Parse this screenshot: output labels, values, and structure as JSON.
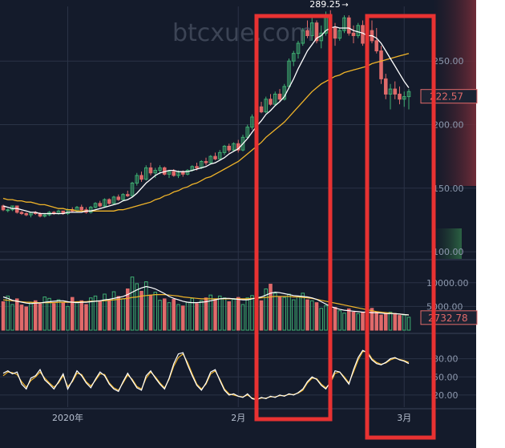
{
  "watermark": "btcxue.com",
  "colors": {
    "background": "#141b2b",
    "up": "#3fae72",
    "down": "#e06a6a",
    "ma_fast": "#ffffff",
    "ma_slow": "#f0b429",
    "highlight": "#e83232",
    "grid": "#2a3346"
  },
  "chart_data": [
    {
      "type": "candlestick",
      "panel": "price",
      "x_axis_labels": [
        {
          "label": "2020年",
          "index": 14
        },
        {
          "label": "2月",
          "index": 51
        },
        {
          "label": "3月",
          "index": 87
        }
      ],
      "y_ticks": [
        "100.00",
        "150.00",
        "200.00",
        "250.00"
      ],
      "ylim": [
        95,
        293
      ],
      "high_annotation": "289.25",
      "high_index": 71,
      "current_price_label": "222.57",
      "ohlc": [
        [
          136,
          137,
          132,
          133
        ],
        [
          133,
          134,
          131,
          133
        ],
        [
          133,
          136,
          132,
          136
        ],
        [
          136,
          136,
          130,
          131
        ],
        [
          131,
          132,
          129,
          130
        ],
        [
          130,
          131,
          128,
          129
        ],
        [
          129,
          131,
          127,
          131
        ],
        [
          131,
          132,
          129,
          130
        ],
        [
          130,
          131,
          127,
          128
        ],
        [
          128,
          130,
          127,
          129
        ],
        [
          129,
          132,
          128,
          131
        ],
        [
          131,
          132,
          129,
          130
        ],
        [
          130,
          133,
          129,
          132
        ],
        [
          132,
          132,
          129,
          130
        ],
        [
          130,
          134,
          129,
          133
        ],
        [
          133,
          135,
          131,
          132
        ],
        [
          132,
          136,
          131,
          135
        ],
        [
          135,
          137,
          132,
          133
        ],
        [
          133,
          135,
          130,
          131
        ],
        [
          131,
          136,
          130,
          135
        ],
        [
          135,
          139,
          134,
          138
        ],
        [
          138,
          140,
          135,
          136
        ],
        [
          136,
          142,
          135,
          141
        ],
        [
          141,
          142,
          137,
          138
        ],
        [
          138,
          144,
          137,
          143
        ],
        [
          143,
          145,
          140,
          141
        ],
        [
          141,
          146,
          140,
          145
        ],
        [
          145,
          148,
          143,
          144
        ],
        [
          144,
          155,
          143,
          154
        ],
        [
          154,
          162,
          152,
          160
        ],
        [
          160,
          163,
          155,
          157
        ],
        [
          157,
          168,
          156,
          166
        ],
        [
          166,
          170,
          160,
          162
        ],
        [
          162,
          166,
          158,
          164
        ],
        [
          164,
          168,
          161,
          166
        ],
        [
          166,
          167,
          160,
          161
        ],
        [
          161,
          164,
          158,
          163
        ],
        [
          163,
          165,
          159,
          160
        ],
        [
          160,
          164,
          158,
          163
        ],
        [
          163,
          164,
          159,
          161
        ],
        [
          161,
          165,
          160,
          164
        ],
        [
          164,
          168,
          163,
          167
        ],
        [
          167,
          170,
          164,
          166
        ],
        [
          166,
          172,
          165,
          171
        ],
        [
          171,
          174,
          168,
          170
        ],
        [
          170,
          176,
          169,
          175
        ],
        [
          175,
          178,
          172,
          173
        ],
        [
          173,
          180,
          172,
          178
        ],
        [
          178,
          184,
          176,
          183
        ],
        [
          183,
          185,
          178,
          180
        ],
        [
          180,
          186,
          179,
          185
        ],
        [
          185,
          188,
          178,
          180
        ],
        [
          180,
          192,
          179,
          190
        ],
        [
          190,
          200,
          189,
          198
        ],
        [
          198,
          208,
          196,
          206
        ],
        [
          206,
          216,
          204,
          214
        ],
        [
          214,
          218,
          209,
          210
        ],
        [
          210,
          222,
          209,
          220
        ],
        [
          220,
          224,
          215,
          216
        ],
        [
          216,
          226,
          215,
          224
        ],
        [
          224,
          228,
          218,
          220
        ],
        [
          220,
          232,
          219,
          230
        ],
        [
          230,
          252,
          228,
          250
        ],
        [
          250,
          258,
          246,
          256
        ],
        [
          256,
          266,
          252,
          264
        ],
        [
          264,
          276,
          262,
          274
        ],
        [
          274,
          282,
          268,
          270
        ],
        [
          270,
          284,
          266,
          280
        ],
        [
          280,
          282,
          264,
          266
        ],
        [
          266,
          278,
          260,
          272
        ],
        [
          272,
          289,
          270,
          286
        ],
        [
          286,
          290,
          274,
          276
        ],
        [
          276,
          280,
          262,
          268
        ],
        [
          268,
          276,
          266,
          274
        ],
        [
          274,
          286,
          272,
          284
        ],
        [
          284,
          286,
          270,
          272
        ],
        [
          272,
          278,
          264,
          270
        ],
        [
          270,
          280,
          268,
          278
        ],
        [
          278,
          282,
          262,
          264
        ],
        [
          264,
          276,
          262,
          274
        ],
        [
          274,
          282,
          264,
          266
        ],
        [
          266,
          276,
          256,
          258
        ],
        [
          258,
          262,
          232,
          236
        ],
        [
          236,
          240,
          220,
          224
        ],
        [
          224,
          232,
          212,
          228
        ],
        [
          228,
          234,
          220,
          224
        ],
        [
          224,
          230,
          216,
          220
        ],
        [
          220,
          226,
          214,
          222
        ],
        [
          222,
          228,
          212,
          226
        ]
      ],
      "ma_fast_values": [
        136,
        135,
        134,
        134,
        133,
        132,
        131,
        131,
        130,
        130,
        130,
        130,
        130,
        130,
        131,
        131,
        131,
        131,
        132,
        132,
        133,
        134,
        135,
        136,
        137,
        138,
        140,
        141,
        143,
        146,
        150,
        154,
        157,
        160,
        162,
        163,
        164,
        164,
        163,
        163,
        163,
        164,
        165,
        166,
        167,
        169,
        170,
        172,
        174,
        177,
        179,
        181,
        185,
        189,
        194,
        199,
        203,
        208,
        211,
        215,
        218,
        222,
        229,
        236,
        244,
        251,
        258,
        263,
        268,
        270,
        274,
        276,
        277,
        276,
        276,
        276,
        274,
        273,
        272,
        270,
        270,
        268,
        264,
        258,
        252,
        246,
        240,
        234,
        229
      ],
      "ma_slow_values": [
        142,
        141,
        141,
        140,
        140,
        139,
        139,
        138,
        137,
        137,
        136,
        135,
        134,
        134,
        133,
        133,
        132,
        132,
        132,
        132,
        132,
        132,
        132,
        132,
        132,
        133,
        133,
        134,
        135,
        136,
        137,
        138,
        139,
        141,
        142,
        144,
        145,
        147,
        148,
        150,
        151,
        153,
        154,
        156,
        158,
        159,
        161,
        163,
        165,
        167,
        169,
        171,
        174,
        177,
        180,
        183,
        186,
        190,
        193,
        196,
        199,
        202,
        206,
        210,
        214,
        218,
        222,
        226,
        229,
        232,
        234,
        236,
        238,
        239,
        241,
        242,
        243,
        244,
        245,
        246,
        248,
        249,
        250,
        251,
        252,
        253,
        254,
        255,
        256
      ]
    },
    {
      "type": "bar",
      "panel": "volume",
      "y_ticks": [
        "5000.00",
        "10000.00"
      ],
      "ylim": [
        0,
        13000
      ],
      "current_value_label": "2732.78",
      "values": [
        6000,
        7200,
        5400,
        6600,
        5300,
        4900,
        5800,
        6200,
        5500,
        7000,
        6700,
        5600,
        6400,
        5800,
        5000,
        6900,
        5900,
        6200,
        5400,
        6800,
        7200,
        6000,
        7600,
        6300,
        8100,
        7100,
        6600,
        8700,
        11200,
        9800,
        8200,
        10200,
        7400,
        8000,
        6300,
        6600,
        5800,
        6500,
        5400,
        5100,
        5900,
        6700,
        5600,
        6200,
        6800,
        7400,
        6400,
        7200,
        6800,
        6000,
        6500,
        6900,
        5400,
        6800,
        7300,
        8200,
        6200,
        8700,
        9700,
        7800,
        7000,
        6900,
        7600,
        6400,
        7000,
        7800,
        6400,
        6200,
        5800,
        4600,
        5200,
        3800,
        4800,
        4100,
        3600,
        4500,
        3800,
        3500,
        3800,
        3600,
        4600,
        3800,
        3200,
        3400,
        3800,
        3500,
        3100,
        3200,
        2733
      ],
      "ma_fast_values": [
        7000,
        6700,
        6300,
        6100,
        5900,
        5700,
        5600,
        5700,
        5700,
        5900,
        6000,
        6100,
        6200,
        6200,
        6000,
        5900,
        5800,
        5900,
        5900,
        6000,
        6100,
        6200,
        6400,
        6500,
        6700,
        6900,
        7100,
        7500,
        8000,
        8500,
        8900,
        9200,
        9000,
        8700,
        8200,
        7700,
        7100,
        6700,
        6400,
        6100,
        5900,
        5800,
        5800,
        5900,
        6000,
        6200,
        6400,
        6600,
        6700,
        6700,
        6600,
        6500,
        6400,
        6400,
        6600,
        6800,
        7000,
        7400,
        7800,
        8000,
        7900,
        7700,
        7500,
        7300,
        7200,
        7100,
        7000,
        6800,
        6500,
        6000,
        5500,
        5000,
        4700,
        4400,
        4200,
        4100,
        4000,
        3900,
        3800,
        3800,
        3700,
        3700,
        3600,
        3500,
        3500,
        3500,
        3400,
        3300,
        3200
      ],
      "ma_slow_values": [
        6400,
        6300,
        6200,
        6100,
        6000,
        5900,
        5900,
        5800,
        5800,
        5800,
        5800,
        5800,
        5900,
        5900,
        5900,
        5900,
        6000,
        6000,
        6000,
        6100,
        6100,
        6200,
        6200,
        6300,
        6400,
        6500,
        6600,
        6700,
        6900,
        7000,
        7200,
        7300,
        7400,
        7500,
        7500,
        7500,
        7400,
        7300,
        7200,
        7000,
        6900,
        6800,
        6700,
        6600,
        6600,
        6600,
        6600,
        6600,
        6600,
        6600,
        6600,
        6600,
        6600,
        6600,
        6700,
        6700,
        6800,
        6900,
        7000,
        7100,
        7100,
        7100,
        7100,
        7000,
        7000,
        6900,
        6800,
        6700,
        6500,
        6300,
        6100,
        5900,
        5700,
        5500,
        5300,
        5100,
        4900,
        4700,
        4500,
        4300,
        4100,
        3900,
        3800,
        3700,
        3600,
        3500,
        3400,
        3300,
        3200
      ]
    },
    {
      "type": "line",
      "panel": "oscillator",
      "y_ticks": [
        "20.00",
        "50.00",
        "80.00"
      ],
      "ylim": [
        0,
        110
      ],
      "series": [
        {
          "values": [
            56,
            60,
            55,
            58,
            38,
            30,
            48,
            52,
            62,
            45,
            38,
            30,
            42,
            55,
            30,
            44,
            60,
            52,
            40,
            32,
            46,
            58,
            52,
            38,
            30,
            26,
            42,
            56,
            44,
            32,
            28,
            52,
            60,
            48,
            38,
            30,
            48,
            72,
            88,
            90,
            70,
            52,
            36,
            28,
            40,
            58,
            62,
            44,
            28,
            20,
            22,
            18,
            16,
            22,
            14,
            12,
            16,
            14,
            18,
            16,
            20,
            18,
            22,
            20,
            24,
            30,
            42,
            50,
            46,
            36,
            30,
            42,
            60,
            58,
            48,
            38,
            62,
            82,
            94,
            90,
            78,
            72,
            70,
            74,
            80,
            82,
            78,
            76,
            72
          ]
        },
        {
          "values": [
            52,
            58,
            57,
            54,
            42,
            33,
            44,
            50,
            58,
            48,
            40,
            33,
            40,
            52,
            34,
            42,
            56,
            54,
            42,
            35,
            44,
            55,
            54,
            40,
            32,
            28,
            40,
            53,
            46,
            34,
            30,
            48,
            58,
            50,
            40,
            32,
            46,
            68,
            82,
            88,
            74,
            55,
            38,
            30,
            38,
            55,
            60,
            46,
            30,
            22,
            20,
            18,
            17,
            20,
            15,
            13,
            15,
            15,
            17,
            17,
            19,
            19,
            21,
            21,
            23,
            28,
            40,
            48,
            47,
            38,
            32,
            40,
            56,
            58,
            50,
            40,
            58,
            78,
            92,
            92,
            80,
            74,
            71,
            73,
            78,
            81,
            79,
            77,
            74
          ]
        }
      ]
    }
  ]
}
